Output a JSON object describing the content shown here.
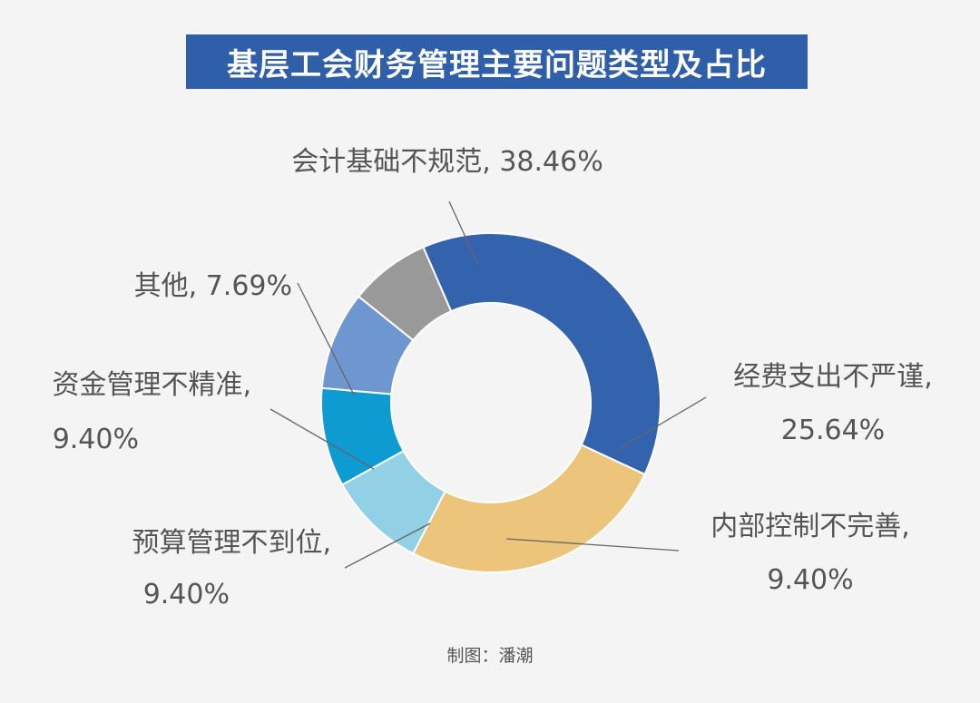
{
  "title": "基层工会财务管理主要问题类型及占比",
  "credit": "制图：潘潮",
  "chart_data": {
    "type": "pie",
    "donut": true,
    "title": "基层工会财务管理主要问题类型及占比",
    "slices": [
      {
        "label": "会计基础不规范",
        "value": 38.46,
        "value_label": "38.46%",
        "color": "#3463ae"
      },
      {
        "label": "经费支出不严谨",
        "value": 25.64,
        "value_label": "25.64%",
        "color": "#ecc47c"
      },
      {
        "label": "内部控制不完善",
        "value": 9.4,
        "value_label": "9.40%",
        "color": "#92d0e6"
      },
      {
        "label": "预算管理不到位",
        "value": 9.4,
        "value_label": "9.40%",
        "color": "#0d9bd2"
      },
      {
        "label": "资金管理不精准",
        "value": 9.4,
        "value_label": "9.40%",
        "color": "#6e97cf"
      },
      {
        "label": "其他",
        "value": 7.69,
        "value_label": "7.69%",
        "color": "#999999"
      }
    ]
  }
}
